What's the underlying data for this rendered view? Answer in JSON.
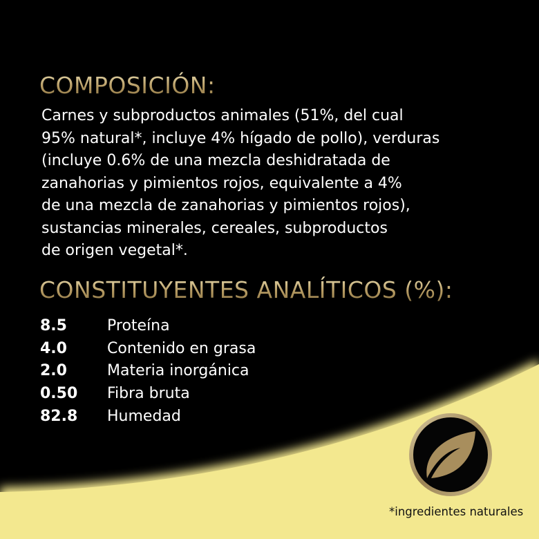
{
  "colors": {
    "background": "#000000",
    "accent_yellow": "#f1e58e",
    "gold": "#b59a62",
    "text": "#ffffff"
  },
  "composition": {
    "title": "COMPOSICIÓN:",
    "lines": [
      "Carnes y subproductos animales (51%, del cual",
      "95% natural*, incluye 4% hígado de pollo), verduras",
      "(incluye 0.6% de una mezcla deshidratada de",
      "zanahorias y pimientos rojos, equivalente a 4%",
      "de una mezcla de zanahorias y pimientos rojos),",
      "sustancias minerales, cereales, subproductos",
      "de origen vegetal*."
    ]
  },
  "analytical": {
    "title": "CONSTITUYENTES ANALÍTICOS (%):",
    "rows": [
      {
        "value": "8.5",
        "label": "Proteína"
      },
      {
        "value": "4.0",
        "label": "Contenido en grasa"
      },
      {
        "value": "2.0",
        "label": "Materia inorgánica"
      },
      {
        "value": "0.50",
        "label": "Fibra bruta"
      },
      {
        "value": "82.8",
        "label": "Humedad"
      }
    ]
  },
  "badge": {
    "icon": "leaf-icon"
  },
  "footnote": "*ingredientes naturales"
}
